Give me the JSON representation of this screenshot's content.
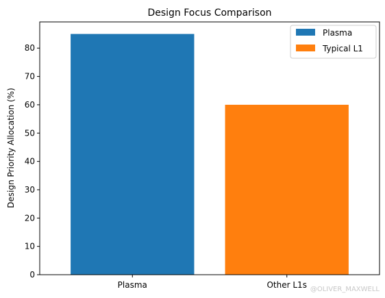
{
  "chart_data": {
    "type": "bar",
    "title": "Design Focus Comparison",
    "xlabel": "",
    "ylabel": "Design Priority Allocation (%)",
    "categories": [
      "Plasma",
      "Other L1s"
    ],
    "values": [
      85,
      60
    ],
    "colors": [
      "#1f77b4",
      "#ff7f0e"
    ],
    "legend": {
      "placement": "top-right",
      "entries": [
        {
          "label": "Plasma",
          "color": "#1f77b4"
        },
        {
          "label": "Typical L1",
          "color": "#ff7f0e"
        }
      ]
    },
    "yticks": [
      0,
      10,
      20,
      30,
      40,
      50,
      60,
      70,
      80
    ],
    "ylim": [
      0,
      89.25
    ],
    "grid": false
  },
  "watermark": "@OLIVER_MAXWELL"
}
